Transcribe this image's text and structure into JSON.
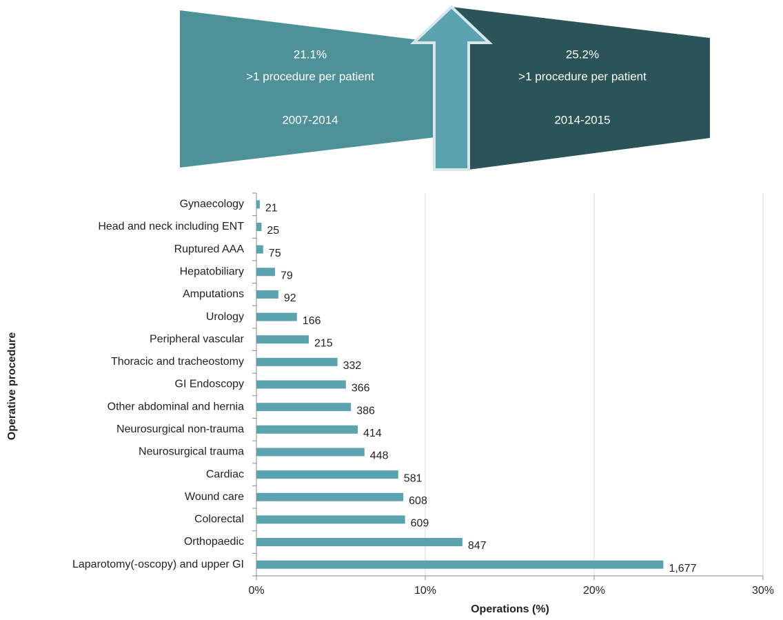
{
  "banner": {
    "left": {
      "lines": [
        "21.1%",
        ">1 procedure per patient",
        "2007-2014"
      ]
    },
    "right": {
      "lines": [
        "25.2%",
        ">1 procedure per patient",
        "2014-2015"
      ]
    }
  },
  "chart_data": {
    "type": "hbar",
    "xlabel": "Operations (%)",
    "ylabel": "Operative procedure",
    "categories": [
      "Gynaecology",
      "Head and neck including ENT",
      "Ruptured AAA",
      "Hepatobiliary",
      "Amputations",
      "Urology",
      "Peripheral vascular",
      "Thoracic and tracheostomy",
      "GI Endoscopy",
      "Other abdominal and hernia",
      "Neurosurgical non-trauma",
      "Neurosurgical trauma",
      "Cardiac",
      "Wound care",
      "Colorectal",
      "Orthopaedic",
      "Laparotomy(-oscopy) and upper GI"
    ],
    "values": [
      0.2,
      0.3,
      0.4,
      1.1,
      1.3,
      2.4,
      3.1,
      4.8,
      5.3,
      5.6,
      6.0,
      6.4,
      8.4,
      8.7,
      8.8,
      12.2,
      24.1
    ],
    "count_labels": [
      "21",
      "25",
      "75",
      "79",
      "92",
      "166",
      "215",
      "332",
      "366",
      "386",
      "414",
      "448",
      "581",
      "608",
      "609",
      "847",
      "1,677"
    ],
    "color": "#5ba3ae",
    "xlim": [
      0,
      30
    ],
    "xticks": [
      {
        "value": 0,
        "label": "0%"
      },
      {
        "value": 10,
        "label": "10%"
      },
      {
        "value": 20,
        "label": "20%"
      },
      {
        "value": 30,
        "label": "30%"
      }
    ],
    "grid": true
  }
}
